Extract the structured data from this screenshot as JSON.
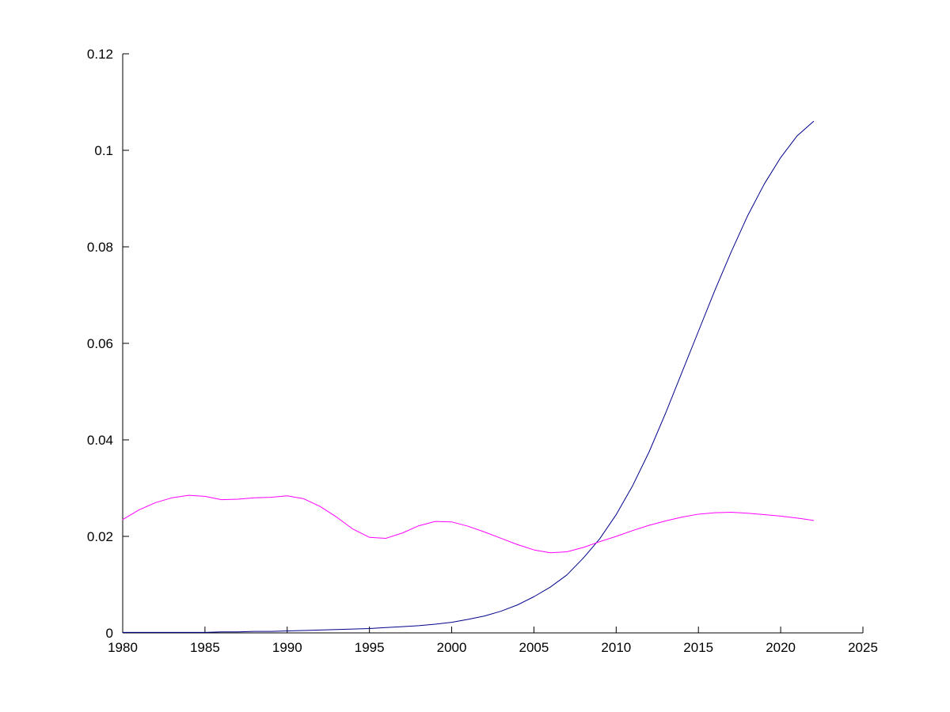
{
  "chart_data": {
    "type": "line",
    "title": "",
    "xlabel": "",
    "ylabel": "",
    "grid": false,
    "legend_position": "none",
    "background_color": "#ffffff",
    "axis_color": "#000000",
    "xlim": [
      1980,
      2025
    ],
    "ylim": [
      0,
      0.12
    ],
    "x_ticks": [
      1980,
      1985,
      1990,
      1995,
      2000,
      2005,
      2010,
      2015,
      2020,
      2025
    ],
    "x_tick_labels": [
      "1980",
      "1985",
      "1990",
      "1995",
      "2000",
      "2005",
      "2010",
      "2015",
      "2020",
      "2025"
    ],
    "y_ticks": [
      0,
      0.02,
      0.04,
      0.06,
      0.08,
      0.1,
      0.12
    ],
    "y_tick_labels": [
      "0",
      "0.02",
      "0.04",
      "0.06",
      "0.08",
      "0.1",
      "0.12"
    ],
    "series": [
      {
        "name": "dark-blue-rising-series",
        "color": "#00008B",
        "stroke_width": 1,
        "x": [
          1980,
          1981,
          1982,
          1983,
          1984,
          1985,
          1986,
          1987,
          1988,
          1989,
          1990,
          1991,
          1992,
          1993,
          1994,
          1995,
          1996,
          1997,
          1998,
          1999,
          2000,
          2001,
          2002,
          2003,
          2004,
          2005,
          2006,
          2007,
          2008,
          2009,
          2010,
          2011,
          2012,
          2013,
          2014,
          2015,
          2016,
          2017,
          2018,
          2019,
          2020,
          2021,
          2022
        ],
        "y": [
          0.0001,
          0.0001,
          0.0001,
          0.0001,
          0.0001,
          0.0001,
          0.0002,
          0.0002,
          0.0003,
          0.0003,
          0.0004,
          0.0005,
          0.0006,
          0.0007,
          0.0008,
          0.0009,
          0.0011,
          0.0013,
          0.0015,
          0.0018,
          0.0022,
          0.0028,
          0.0035,
          0.0045,
          0.0058,
          0.0075,
          0.0095,
          0.012,
          0.0155,
          0.0195,
          0.0245,
          0.0305,
          0.0375,
          0.0455,
          0.054,
          0.0625,
          0.071,
          0.079,
          0.0865,
          0.093,
          0.0985,
          0.103,
          0.106
        ]
      },
      {
        "name": "magenta-oscillating-series",
        "color": "#FF00FF",
        "stroke_width": 1,
        "x": [
          1980,
          1981,
          1982,
          1983,
          1984,
          1985,
          1986,
          1987,
          1988,
          1989,
          1990,
          1991,
          1992,
          1993,
          1994,
          1995,
          1996,
          1997,
          1998,
          1999,
          2000,
          2001,
          2002,
          2003,
          2004,
          2005,
          2006,
          2007,
          2008,
          2009,
          2010,
          2011,
          2012,
          2013,
          2014,
          2015,
          2016,
          2017,
          2018,
          2019,
          2020,
          2021,
          2022
        ],
        "y": [
          0.0235,
          0.0255,
          0.027,
          0.028,
          0.0285,
          0.0283,
          0.0276,
          0.0277,
          0.028,
          0.0281,
          0.0284,
          0.0278,
          0.0262,
          0.024,
          0.0215,
          0.0198,
          0.0196,
          0.0207,
          0.0222,
          0.0231,
          0.023,
          0.0221,
          0.0209,
          0.0196,
          0.0183,
          0.0172,
          0.0166,
          0.0168,
          0.0177,
          0.0189,
          0.02,
          0.0212,
          0.0223,
          0.0232,
          0.024,
          0.0246,
          0.0249,
          0.025,
          0.0248,
          0.0245,
          0.0242,
          0.0238,
          0.0233
        ]
      }
    ]
  }
}
